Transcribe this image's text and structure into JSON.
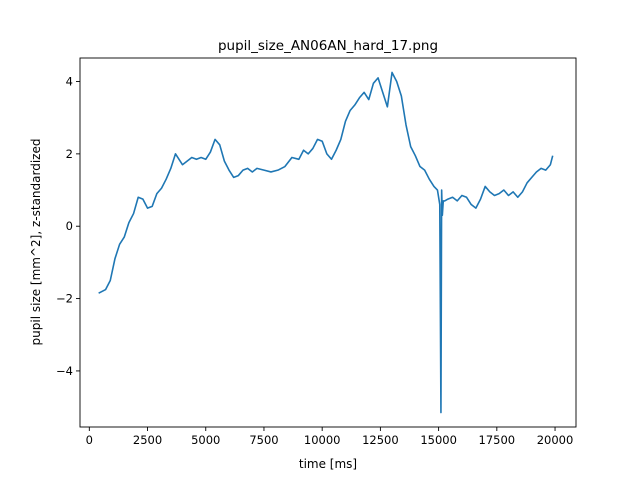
{
  "chart_data": {
    "type": "line",
    "title": "pupil_size_AN06AN_hard_17.png",
    "xlabel": "time [ms]",
    "ylabel": "pupil size [mm^2], z-standardized",
    "xlim": [
      -400,
      20900
    ],
    "ylim": [
      -5.55,
      4.65
    ],
    "xticks": [
      0,
      2500,
      5000,
      7500,
      10000,
      12500,
      15000,
      17500,
      20000
    ],
    "yticks": [
      -4,
      -2,
      0,
      2,
      4
    ],
    "grid": false,
    "line_color": "#1f77b4",
    "series": [
      {
        "x": [
          400,
          700,
          900,
          1100,
          1300,
          1500,
          1700,
          1900,
          2100,
          2300,
          2500,
          2700,
          2900,
          3100,
          3300,
          3500,
          3700,
          3800,
          4000,
          4200,
          4400,
          4600,
          4800,
          5000,
          5200,
          5400,
          5600,
          5800,
          6000,
          6200,
          6400,
          6600,
          6800,
          7000,
          7200,
          7500,
          7800,
          8100,
          8400,
          8700,
          9000,
          9200,
          9400,
          9600,
          9800,
          10000,
          10200,
          10400,
          10600,
          10800,
          11000,
          11200,
          11400,
          11600,
          11800,
          12000,
          12200,
          12400,
          12600,
          12800,
          13000,
          13200,
          13400,
          13600,
          13800,
          14000,
          14200,
          14400,
          14600,
          14800,
          14950,
          15050,
          15100,
          15130,
          15160,
          15200,
          15260,
          15400,
          15600,
          15800,
          16000,
          16200,
          16400,
          16600,
          16800,
          17000,
          17200,
          17400,
          17600,
          17800,
          18000,
          18200,
          18400,
          18600,
          18800,
          19000,
          19200,
          19400,
          19600,
          19800,
          19900
        ],
        "y": [
          -1.85,
          -1.75,
          -1.5,
          -0.9,
          -0.5,
          -0.3,
          0.1,
          0.35,
          0.8,
          0.75,
          0.5,
          0.55,
          0.9,
          1.05,
          1.3,
          1.6,
          2.0,
          1.9,
          1.7,
          1.8,
          1.9,
          1.85,
          1.9,
          1.85,
          2.05,
          2.4,
          2.25,
          1.8,
          1.55,
          1.35,
          1.4,
          1.55,
          1.6,
          1.5,
          1.6,
          1.55,
          1.5,
          1.55,
          1.65,
          1.9,
          1.85,
          2.1,
          2.0,
          2.15,
          2.4,
          2.35,
          2.0,
          1.85,
          2.1,
          2.4,
          2.9,
          3.2,
          3.35,
          3.55,
          3.7,
          3.5,
          3.95,
          4.1,
          3.7,
          3.3,
          4.25,
          4.0,
          3.6,
          2.8,
          2.2,
          1.95,
          1.65,
          1.55,
          1.3,
          1.1,
          1.0,
          0.6,
          -5.15,
          1.0,
          0.3,
          0.7,
          0.7,
          0.75,
          0.8,
          0.7,
          0.85,
          0.8,
          0.6,
          0.5,
          0.75,
          1.1,
          0.95,
          0.85,
          0.9,
          1.0,
          0.85,
          0.95,
          0.8,
          0.95,
          1.2,
          1.35,
          1.5,
          1.6,
          1.55,
          1.7,
          1.95
        ]
      }
    ]
  }
}
